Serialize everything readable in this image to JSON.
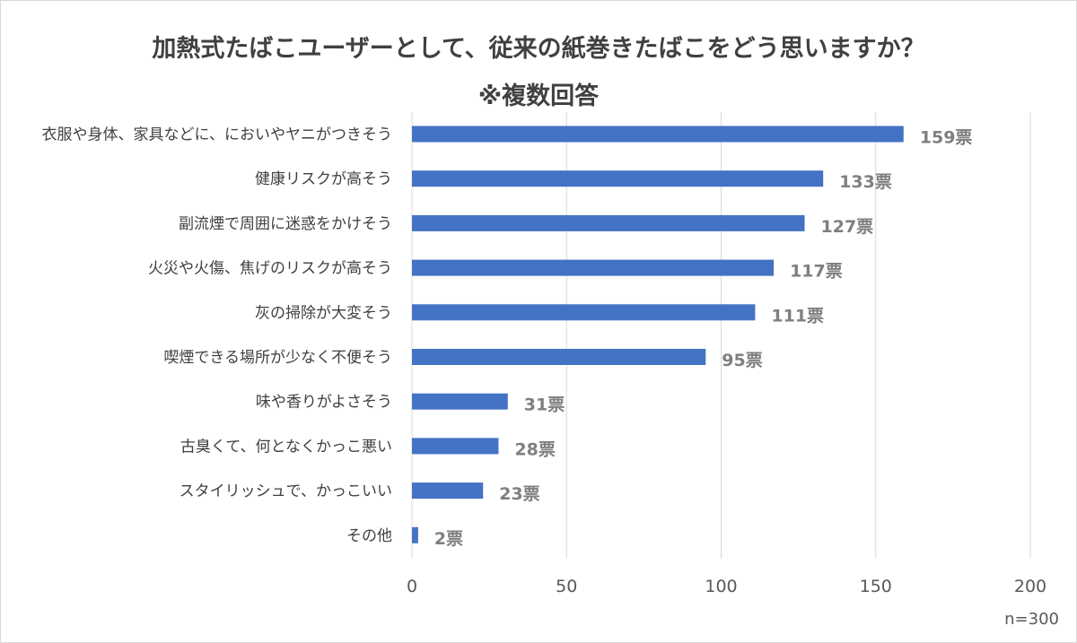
{
  "chart_data": {
    "type": "bar",
    "orientation": "horizontal",
    "title": "加熱式たばこユーザーとして、従来の紙巻きたばこをどう思いますか？",
    "subtitle": "※複数回答",
    "categories": [
      "衣服や身体、家具などに、においやヤニがつきそう",
      "健康リスクが高そう",
      "副流煙で周囲に迷惑をかけそう",
      "火災や火傷、焦げのリスクが高そう",
      "灰の掃除が大変そう",
      "喫煙できる場所が少なく不便そう",
      "味や香りがよさそう",
      "古臭くて、何となくかっこ悪い",
      "スタイリッシュで、かっこいい",
      "その他"
    ],
    "values": [
      159,
      133,
      127,
      117,
      111,
      95,
      31,
      28,
      23,
      2
    ],
    "value_labels": [
      "159票",
      "133票",
      "127票",
      "117票",
      "111票",
      "95票",
      "31票",
      "28票",
      "23票",
      "2票"
    ],
    "xlim": [
      0,
      200
    ],
    "xticks": [
      0,
      50,
      100,
      150,
      200
    ],
    "xtick_labels": [
      "0",
      "50",
      "100",
      "150",
      "200"
    ],
    "grid": true,
    "legend": "none",
    "bar_color": "#4472c4",
    "note": "n=300"
  }
}
